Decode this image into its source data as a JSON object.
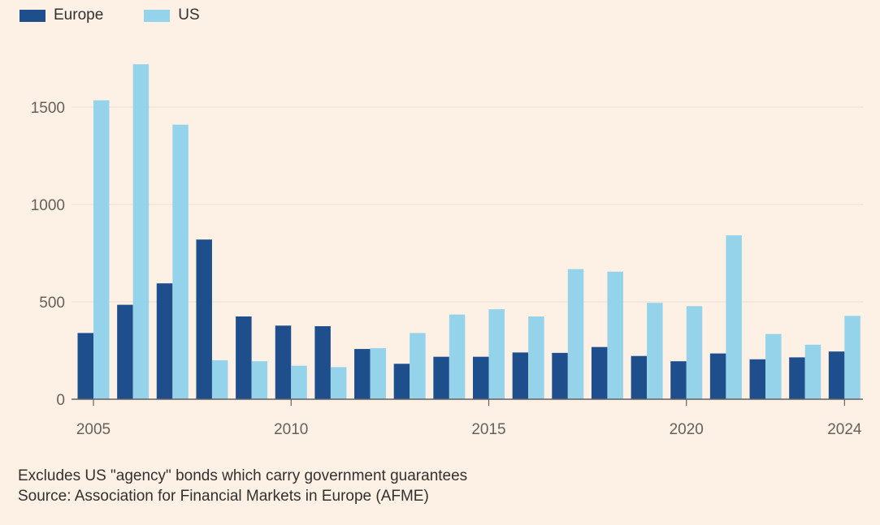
{
  "chart_data": {
    "type": "bar",
    "x": [
      2005,
      2006,
      2007,
      2008,
      2009,
      2010,
      2011,
      2012,
      2013,
      2014,
      2015,
      2016,
      2017,
      2018,
      2019,
      2020,
      2021,
      2022,
      2023,
      2024
    ],
    "series": [
      {
        "name": "Europe",
        "color": "#1f4e8c",
        "values": [
          340,
          485,
          595,
          820,
          425,
          378,
          375,
          258,
          182,
          218,
          218,
          240,
          238,
          268,
          222,
          195,
          235,
          205,
          215,
          245
        ]
      },
      {
        "name": "US",
        "color": "#94d3ea",
        "values": [
          1535,
          1720,
          1410,
          200,
          195,
          172,
          165,
          262,
          340,
          435,
          462,
          425,
          668,
          655,
          495,
          478,
          842,
          335,
          280,
          428
        ]
      }
    ],
    "x_tick_labels": [
      "2005",
      "2010",
      "2015",
      "2020",
      "2024"
    ],
    "y_ticks": [
      0,
      500,
      1000,
      1500
    ],
    "y_tick_labels": [
      "0",
      "500",
      "1000",
      "1500"
    ],
    "ylim": [
      0,
      1800
    ],
    "grid": true,
    "legend_position": "top-left",
    "title": "",
    "xlabel": "",
    "ylabel": ""
  },
  "notes": {
    "line1": "Excludes US \"agency\" bonds which carry government guarantees",
    "line2": "Source: Association for Financial Markets in Europe (AFME)"
  }
}
